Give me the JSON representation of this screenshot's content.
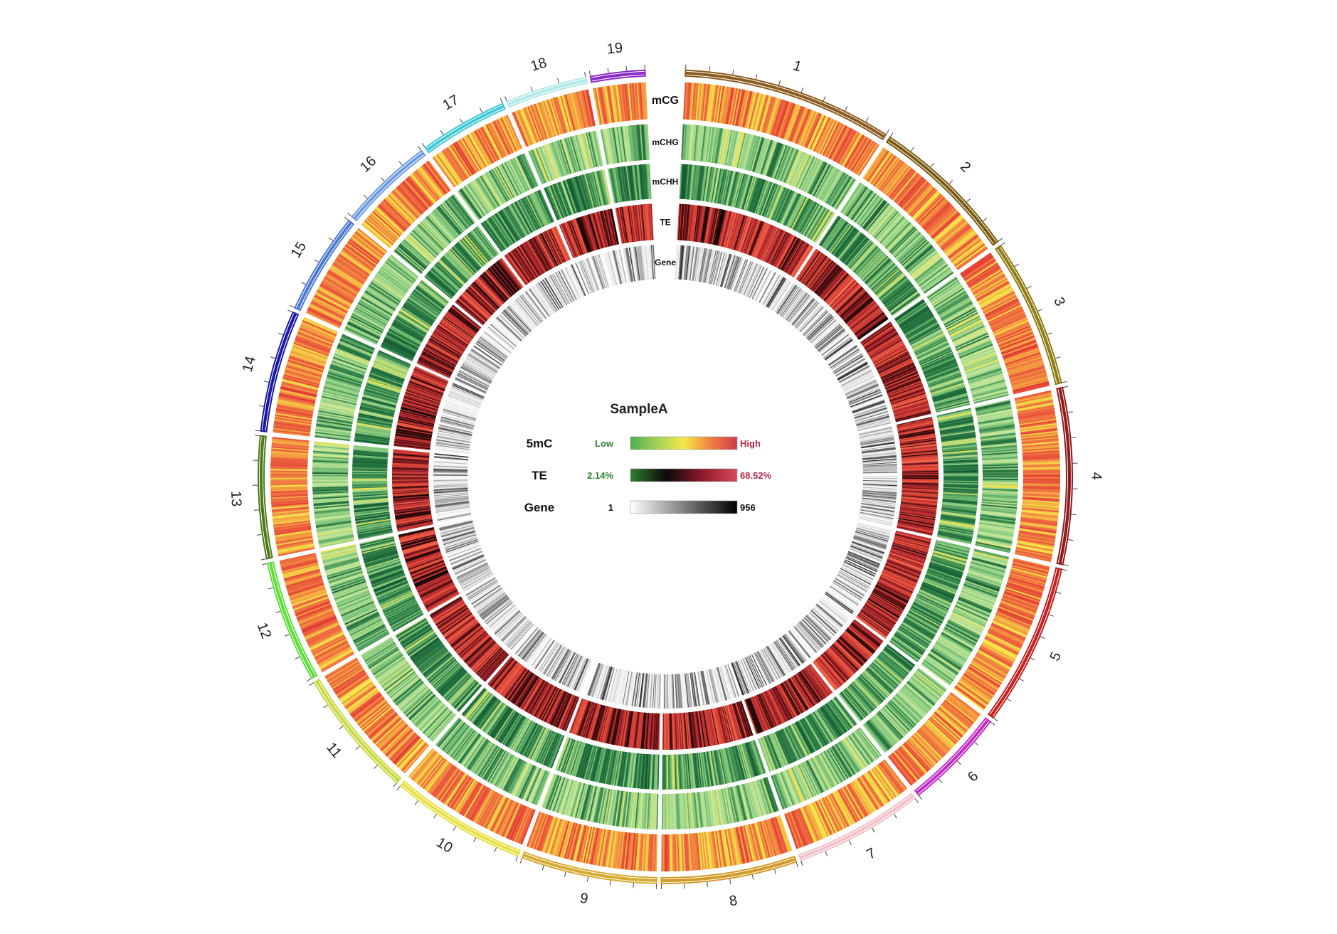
{
  "chart_data": {
    "type": "circos",
    "title": "SampleA",
    "chromosomes": [
      {
        "name": "1",
        "color": "#8B5A1E",
        "size": 62
      },
      {
        "name": "2",
        "color": "#7A5A10",
        "size": 44
      },
      {
        "name": "3",
        "color": "#8E7B12",
        "size": 44
      },
      {
        "name": "4",
        "color": "#8E1A1A",
        "size": 52
      },
      {
        "name": "5",
        "color": "#C02020",
        "size": 48
      },
      {
        "name": "6",
        "color": "#C02BC4",
        "size": 30
      },
      {
        "name": "7",
        "color": "#F2C0C8",
        "size": 38
      },
      {
        "name": "8",
        "color": "#D29A28",
        "size": 40
      },
      {
        "name": "9",
        "color": "#D6AA30",
        "size": 40
      },
      {
        "name": "10",
        "color": "#E8E040",
        "size": 40
      },
      {
        "name": "11",
        "color": "#C8D840",
        "size": 38
      },
      {
        "name": "12",
        "color": "#5EDC3A",
        "size": 36
      },
      {
        "name": "13",
        "color": "#4E7A1A",
        "size": 36
      },
      {
        "name": "14",
        "color": "#1A1AA0",
        "size": 36
      },
      {
        "name": "15",
        "color": "#4A78D0",
        "size": 30
      },
      {
        "name": "16",
        "color": "#6A9AE0",
        "size": 28
      },
      {
        "name": "17",
        "color": "#3EC8D8",
        "size": 26
      },
      {
        "name": "18",
        "color": "#B0E8E8",
        "size": 24
      },
      {
        "name": "19",
        "color": "#8A2BC8",
        "size": 16
      }
    ],
    "tracks": [
      {
        "name": "mCG",
        "scale": "5mC"
      },
      {
        "name": "mCHG",
        "scale": "5mC"
      },
      {
        "name": "mCHH",
        "scale": "5mC"
      },
      {
        "name": "TE",
        "scale": "TE"
      },
      {
        "name": "Gene",
        "scale": "Gene"
      }
    ],
    "legend": [
      {
        "name": "5mC",
        "low": "Low",
        "high": "High",
        "low_color": "#2E7D32",
        "high_color": "#B0284A",
        "gradient": [
          "#4CAF50",
          "#A5D15A",
          "#F4E84A",
          "#F08040",
          "#D23A4A"
        ]
      },
      {
        "name": "TE",
        "low": "2.14%",
        "high": "68.52%",
        "low_color": "#2E7D32",
        "high_color": "#B0284A",
        "gradient": [
          "#2E7D32",
          "#0A0A0A",
          "#8A1A2A",
          "#D84A5A"
        ]
      },
      {
        "name": "Gene",
        "low": "1",
        "high": "956",
        "low_color": "#111111",
        "high_color": "#111111",
        "gradient": [
          "#FFFFFF",
          "#000000"
        ]
      }
    ]
  }
}
